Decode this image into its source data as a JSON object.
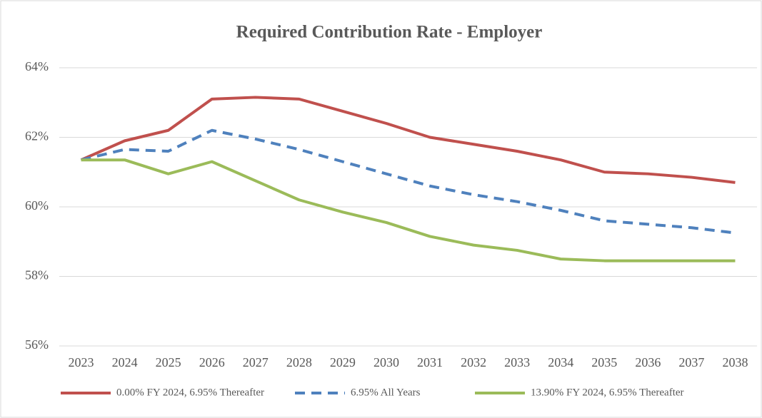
{
  "chart_data": {
    "type": "line",
    "title": "Required Contribution Rate - Employer",
    "categories": [
      "2023",
      "2024",
      "2025",
      "2026",
      "2027",
      "2028",
      "2029",
      "2030",
      "2031",
      "2032",
      "2033",
      "2034",
      "2035",
      "2036",
      "2037",
      "2038"
    ],
    "series": [
      {
        "name": "0.00% FY 2024, 6.95% Thereafter",
        "color": "#c0504d",
        "dash": false,
        "values": [
          61.35,
          61.9,
          62.2,
          63.1,
          63.15,
          63.1,
          62.75,
          62.4,
          62.0,
          61.8,
          61.6,
          61.35,
          61.0,
          60.95,
          60.85,
          60.7
        ]
      },
      {
        "name": "6.95% All Years",
        "color": "#4f81bd",
        "dash": true,
        "values": [
          61.35,
          61.65,
          61.6,
          62.2,
          61.95,
          61.65,
          61.3,
          60.95,
          60.6,
          60.35,
          60.15,
          59.9,
          59.6,
          59.5,
          59.4,
          59.25
        ]
      },
      {
        "name": "13.90% FY 2024, 6.95% Thereafter",
        "color": "#9bbb59",
        "dash": false,
        "values": [
          61.35,
          61.35,
          60.95,
          61.3,
          60.75,
          60.2,
          59.85,
          59.55,
          59.15,
          58.9,
          58.75,
          58.5,
          58.45,
          58.45,
          58.45,
          58.45
        ]
      }
    ],
    "ylim": [
      56,
      64
    ],
    "yticks": [
      {
        "value": 56,
        "label": "56%"
      },
      {
        "value": 58,
        "label": "58%"
      },
      {
        "value": 60,
        "label": "60%"
      },
      {
        "value": 62,
        "label": "62%"
      },
      {
        "value": 64,
        "label": "64%"
      }
    ],
    "grid": true,
    "legend": "bottom"
  }
}
